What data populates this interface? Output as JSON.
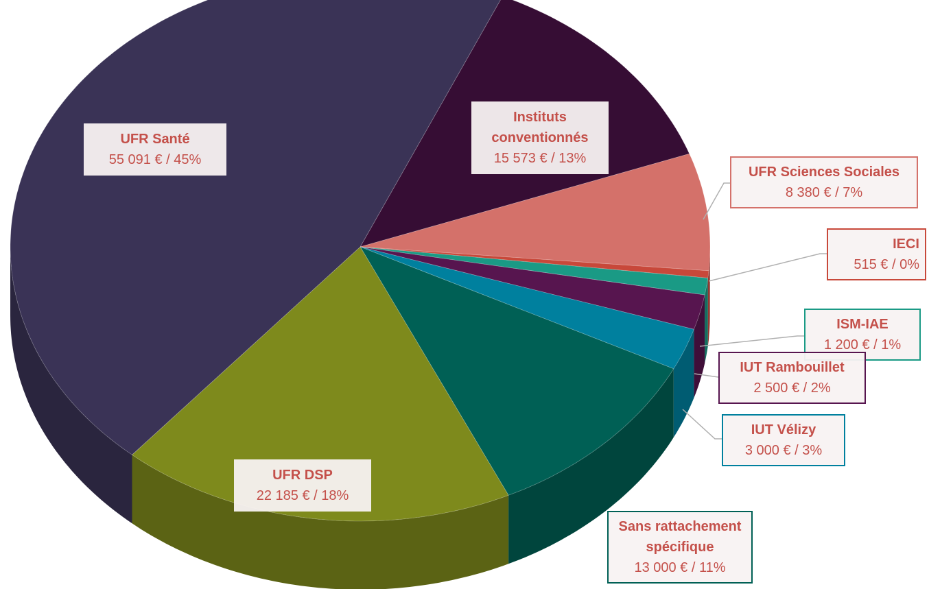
{
  "chart_data": {
    "type": "pie",
    "categories": [
      "Instituts conventionnés",
      "UFR Sciences Sociales",
      "IECI",
      "ISM-IAE",
      "IUT Rambouillet",
      "IUT Vélizy",
      "Sans rattachement spécifique",
      "UFR DSP",
      "UFR Santé"
    ],
    "values": [
      15573,
      8380,
      515,
      1200,
      2500,
      3000,
      13000,
      22185,
      55091
    ],
    "value_labels": [
      "15 573 € / 13%",
      "8 380 € / 7%",
      "515 € / 0%",
      "1 200 € / 1%",
      "2 500 € / 2%",
      "3 000 € / 3%",
      "13 000 € / 11%",
      "22 185 € / 18%",
      "55 091 € / 45%"
    ],
    "colors": [
      "#360d34",
      "#d4716a",
      "#c8483a",
      "#1a9a85",
      "#57154f",
      "#00809e",
      "#006055",
      "#7e8a1c",
      "#3a3356"
    ]
  }
}
